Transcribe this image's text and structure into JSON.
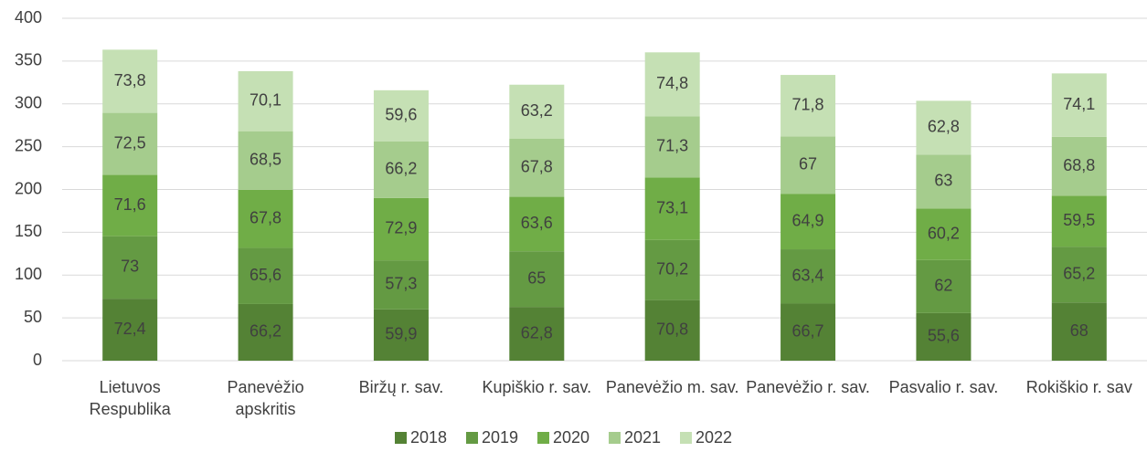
{
  "chart_data": {
    "type": "stacked_bar",
    "categories": [
      "Lietuvos Respublika",
      "Panevėžio apskritis",
      "Biržų r. sav.",
      "Kupiškio r. sav.",
      "Panevėžio m. sav.",
      "Panevėžio r. sav.",
      "Pasvalio r. sav.",
      "Rokiškio r. sav"
    ],
    "series": [
      {
        "name": "2018",
        "color": "#548235",
        "values": [
          72.4,
          66.2,
          59.9,
          62.8,
          70.8,
          66.7,
          55.6,
          68
        ],
        "value_labels": [
          "72,4",
          "66,2",
          "59,9",
          "62,8",
          "70,8",
          "66,7",
          "55,6",
          "68"
        ]
      },
      {
        "name": "2019",
        "color": "#649a43",
        "values": [
          73,
          65.6,
          57.3,
          65,
          70.2,
          63.4,
          62,
          65.2
        ],
        "value_labels": [
          "73",
          "65,6",
          "57,3",
          "65",
          "70,2",
          "63,4",
          "62",
          "65,2"
        ]
      },
      {
        "name": "2020",
        "color": "#70ad47",
        "values": [
          71.6,
          67.8,
          72.9,
          63.6,
          73.1,
          64.9,
          60.2,
          59.5
        ],
        "value_labels": [
          "71,6",
          "67,8",
          "72,9",
          "63,6",
          "73,1",
          "64,9",
          "60,2",
          "59,5"
        ]
      },
      {
        "name": "2021",
        "color": "#a5cc8d",
        "values": [
          72.5,
          68.5,
          66.2,
          67.8,
          71.3,
          67,
          63,
          68.8
        ],
        "value_labels": [
          "72,5",
          "68,5",
          "66,2",
          "67,8",
          "71,3",
          "67",
          "63",
          "68,8"
        ]
      },
      {
        "name": "2022",
        "color": "#c5e0b4",
        "values": [
          73.8,
          70.1,
          59.6,
          63.2,
          74.8,
          71.8,
          62.8,
          74.1
        ],
        "value_labels": [
          "73,8",
          "70,1",
          "59,6",
          "63,2",
          "74,8",
          "71,8",
          "62,8",
          "74,1"
        ]
      }
    ],
    "ylim": [
      0,
      400
    ],
    "yticks": [
      0,
      50,
      100,
      150,
      200,
      250,
      300,
      350,
      400
    ],
    "grid": true,
    "legend": "bottom"
  }
}
